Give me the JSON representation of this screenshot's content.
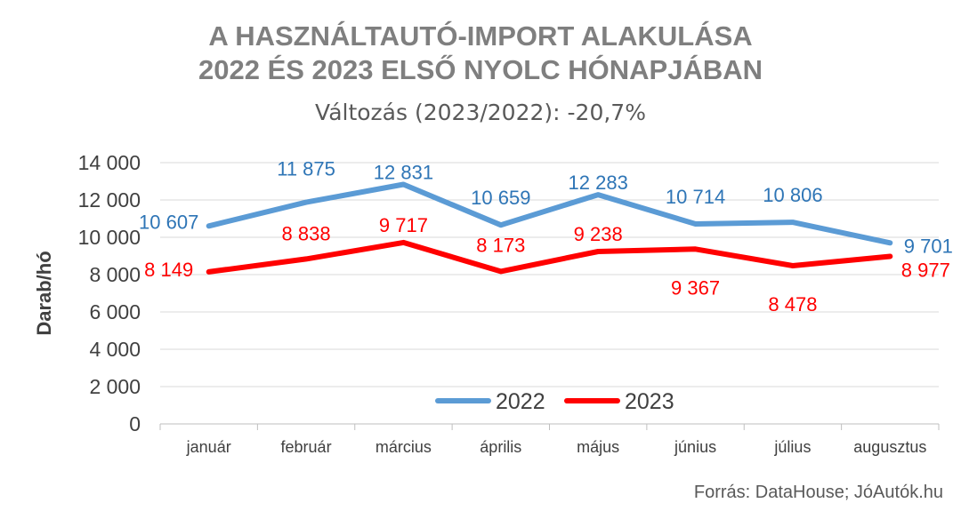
{
  "title_lines": [
    "A HASZNÁLTAUTÓ-IMPORT ALAKULÁSA",
    "2022 ÉS 2023 ELSŐ NYOLC HÓNAPJÁBAN"
  ],
  "subtitle": "Változás (2023/2022): -20,7%",
  "source": "Forrás: DataHouse; JóAutók.hu",
  "chart_data": {
    "type": "line",
    "title": "A HASZNÁLTAUTÓ-IMPORT ALAKULÁSA 2022 ÉS 2023 ELSŐ NYOLC HÓNAPJÁBAN",
    "subtitle": "Változás (2023/2022): -20,7%",
    "xlabel": "",
    "ylabel": "Darab/hó",
    "ylim": [
      0,
      14000
    ],
    "yticks": [
      0,
      2000,
      4000,
      6000,
      8000,
      10000,
      12000,
      14000
    ],
    "ytick_labels": [
      "0",
      "2 000",
      "4 000",
      "6 000",
      "8 000",
      "10 000",
      "12 000",
      "14 000"
    ],
    "categories": [
      "január",
      "február",
      "március",
      "április",
      "május",
      "június",
      "július",
      "augusztus"
    ],
    "grid": "horizontal",
    "legend_position": "bottom-center",
    "series": [
      {
        "name": "2022",
        "color": "#5b9bd5",
        "values": [
          10607,
          11875,
          12831,
          10659,
          12283,
          10714,
          10806,
          9701
        ],
        "labels": [
          "10 607",
          "11 875",
          "12 831",
          "10 659",
          "12 283",
          "10 714",
          "10 806",
          "9 701"
        ]
      },
      {
        "name": "2023",
        "color": "#ff0000",
        "values": [
          8149,
          8838,
          9717,
          8173,
          9238,
          9367,
          8478,
          8977
        ],
        "labels": [
          "8 149",
          "8 838",
          "9 717",
          "8 173",
          "9 238",
          "9 367",
          "8 478",
          "8 977"
        ]
      }
    ]
  }
}
